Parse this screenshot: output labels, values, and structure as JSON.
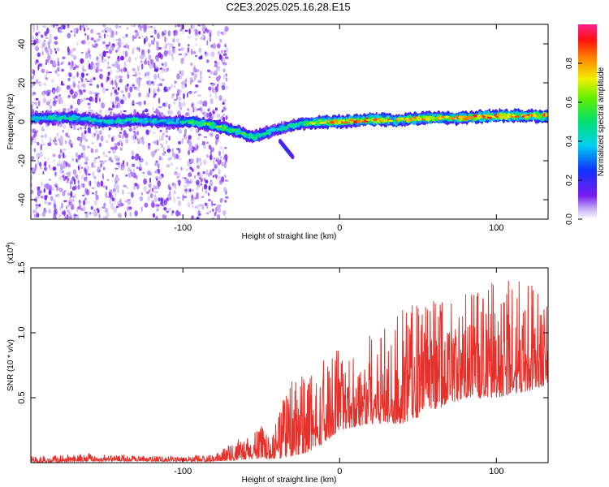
{
  "title": "C2E3.2025.025.16.28.E15",
  "chart_data": [
    {
      "type": "heatmap",
      "xlabel": "Height of straight line (km)",
      "ylabel": "Frequency (Hz)",
      "xlim": [
        -197,
        133
      ],
      "ylim": [
        -50,
        50
      ],
      "xticks": [
        -100,
        0,
        100
      ],
      "xtick_labels": [
        "-100",
        "0",
        "100"
      ],
      "yticks": [
        -40,
        -20,
        0,
        20,
        40
      ],
      "ytick_labels": [
        "-40",
        "-20",
        "0",
        "20",
        "40"
      ],
      "colorbar": {
        "label": "Normalized spectral amplitude",
        "range": [
          0,
          1
        ],
        "ticks": [
          0.0,
          0.2,
          0.4,
          0.6,
          0.8
        ],
        "tick_labels": [
          "0.0",
          "0.2",
          "0.4",
          "0.6",
          "0.8"
        ],
        "colormap": "rainbow (violet to red/pink)"
      },
      "noise_region_x": [
        -197,
        -72
      ],
      "ridge": {
        "description": "narrowband signal ridge",
        "points": [
          {
            "x": -190,
            "freq": 2,
            "amp": 0.45
          },
          {
            "x": -170,
            "freq": 2,
            "amp": 0.5
          },
          {
            "x": -150,
            "freq": 0,
            "amp": 0.45
          },
          {
            "x": -130,
            "freq": 1,
            "amp": 0.5
          },
          {
            "x": -110,
            "freq": 0,
            "amp": 0.4
          },
          {
            "x": -95,
            "freq": 0,
            "amp": 0.55
          },
          {
            "x": -80,
            "freq": -2,
            "amp": 0.6
          },
          {
            "x": -65,
            "freq": -5,
            "amp": 0.6
          },
          {
            "x": -55,
            "freq": -8,
            "amp": 0.55
          },
          {
            "x": -45,
            "freq": -5,
            "amp": 0.5
          },
          {
            "x": -35,
            "freq": -3,
            "amp": 0.45
          },
          {
            "x": -25,
            "freq": -1,
            "amp": 0.55
          },
          {
            "x": -10,
            "freq": 0,
            "amp": 0.75
          },
          {
            "x": 0,
            "freq": 0,
            "amp": 0.85
          },
          {
            "x": 20,
            "freq": 1,
            "amp": 0.85
          },
          {
            "x": 40,
            "freq": 1,
            "amp": 0.8
          },
          {
            "x": 60,
            "freq": 2,
            "amp": 0.8
          },
          {
            "x": 80,
            "freq": 2,
            "amp": 0.8
          },
          {
            "x": 100,
            "freq": 3,
            "amp": 0.9
          },
          {
            "x": 120,
            "freq": 3,
            "amp": 0.9
          },
          {
            "x": 133,
            "freq": 3,
            "amp": 0.9
          }
        ]
      },
      "tail": {
        "x": [
          -38,
          -30
        ],
        "freq": [
          -10,
          -18
        ]
      }
    },
    {
      "type": "line",
      "xlabel": "Height of straight line (km)",
      "ylabel": "SNR (10 * v/v)",
      "scale_label": "(x10",
      "scale_exp": "4",
      "scale_close": ")",
      "xlim": [
        -197,
        133
      ],
      "ylim": [
        0,
        15000
      ],
      "xticks": [
        -100,
        0,
        100
      ],
      "xtick_labels": [
        "-100",
        "0",
        "100"
      ],
      "yticks": [
        5000,
        10000,
        15000
      ],
      "ytick_labels": [
        "0.5",
        "1.0",
        "1.5"
      ],
      "series": [
        {
          "color": "#e8302a",
          "envelope": [
            {
              "x": -197,
              "low": 0,
              "high": 500
            },
            {
              "x": -160,
              "low": 100,
              "high": 700
            },
            {
              "x": -120,
              "low": 100,
              "high": 500
            },
            {
              "x": -80,
              "low": 100,
              "high": 600
            },
            {
              "x": -65,
              "low": 200,
              "high": 1800
            },
            {
              "x": -50,
              "low": 300,
              "high": 2800
            },
            {
              "x": -40,
              "low": 300,
              "high": 3200
            },
            {
              "x": -30,
              "low": 500,
              "high": 7500
            },
            {
              "x": -20,
              "low": 800,
              "high": 6500
            },
            {
              "x": -10,
              "low": 1500,
              "high": 8000
            },
            {
              "x": 0,
              "low": 2500,
              "high": 8800
            },
            {
              "x": 20,
              "low": 3000,
              "high": 10000
            },
            {
              "x": 40,
              "low": 3000,
              "high": 12000
            },
            {
              "x": 60,
              "low": 4000,
              "high": 12500
            },
            {
              "x": 80,
              "low": 5000,
              "high": 13500
            },
            {
              "x": 100,
              "low": 5000,
              "high": 14000
            },
            {
              "x": 120,
              "low": 5500,
              "high": 14200
            },
            {
              "x": 133,
              "low": 6000,
              "high": 13000
            }
          ]
        }
      ]
    }
  ]
}
